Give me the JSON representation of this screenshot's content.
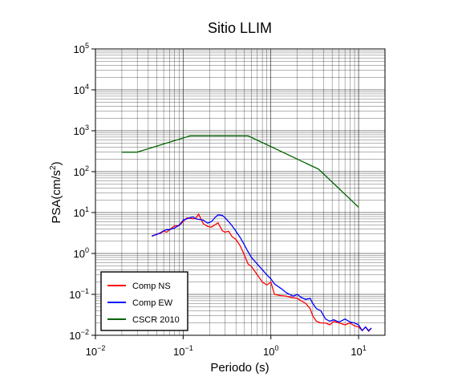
{
  "chart_data": {
    "type": "line",
    "title": "Sitio LLIM",
    "xlabel": "Periodo (s)",
    "ylabel": "PSA(cm/s²)",
    "ylabel_parts": {
      "main": "PSA(cm/s",
      "sup": "2",
      "end": ")"
    },
    "x_scale": "log",
    "y_scale": "log",
    "xlim": [
      0.01,
      20
    ],
    "ylim": [
      0.01,
      100000
    ],
    "grid": true,
    "legend_position": "bottom-left",
    "x_ticks": [
      {
        "value": 0.01,
        "base": "10",
        "exp": "−2"
      },
      {
        "value": 0.1,
        "base": "10",
        "exp": "−1"
      },
      {
        "value": 1,
        "base": "10",
        "exp": "0"
      },
      {
        "value": 10,
        "base": "10",
        "exp": "1"
      }
    ],
    "y_ticks": [
      {
        "value": 0.01,
        "base": "10",
        "exp": "−2"
      },
      {
        "value": 0.1,
        "base": "10",
        "exp": "−1"
      },
      {
        "value": 1,
        "base": "10",
        "exp": "0"
      },
      {
        "value": 10,
        "base": "10",
        "exp": "1"
      },
      {
        "value": 100,
        "base": "10",
        "exp": "2"
      },
      {
        "value": 1000,
        "base": "10",
        "exp": "3"
      },
      {
        "value": 10000,
        "base": "10",
        "exp": "4"
      },
      {
        "value": 100000,
        "base": "10",
        "exp": "5"
      }
    ],
    "series": [
      {
        "name": "Comp NS",
        "color": "#ff0000",
        "points": [
          [
            0.044,
            2.6
          ],
          [
            0.05,
            3.0
          ],
          [
            0.055,
            3.1
          ],
          [
            0.06,
            3.5
          ],
          [
            0.065,
            3.3
          ],
          [
            0.07,
            3.8
          ],
          [
            0.075,
            4.3
          ],
          [
            0.08,
            4.7
          ],
          [
            0.09,
            4.8
          ],
          [
            0.1,
            6.0
          ],
          [
            0.11,
            7.4
          ],
          [
            0.12,
            7.3
          ],
          [
            0.13,
            7.0
          ],
          [
            0.14,
            7.3
          ],
          [
            0.15,
            9.2
          ],
          [
            0.16,
            6.9
          ],
          [
            0.17,
            5.3
          ],
          [
            0.19,
            4.6
          ],
          [
            0.21,
            4.4
          ],
          [
            0.23,
            5.0
          ],
          [
            0.25,
            5.6
          ],
          [
            0.28,
            3.6
          ],
          [
            0.3,
            3.3
          ],
          [
            0.33,
            3.5
          ],
          [
            0.36,
            2.6
          ],
          [
            0.4,
            2.2
          ],
          [
            0.45,
            1.5
          ],
          [
            0.5,
            0.9
          ],
          [
            0.55,
            0.55
          ],
          [
            0.6,
            0.48
          ],
          [
            0.7,
            0.3
          ],
          [
            0.8,
            0.2
          ],
          [
            0.9,
            0.17
          ],
          [
            1.0,
            0.2
          ],
          [
            1.1,
            0.1
          ],
          [
            1.3,
            0.093
          ],
          [
            1.5,
            0.09
          ],
          [
            1.8,
            0.083
          ],
          [
            2.0,
            0.08
          ],
          [
            2.2,
            0.07
          ],
          [
            2.5,
            0.06
          ],
          [
            2.8,
            0.045
          ],
          [
            3.0,
            0.03
          ],
          [
            3.3,
            0.022
          ],
          [
            3.7,
            0.02
          ],
          [
            4.2,
            0.02
          ],
          [
            4.7,
            0.018
          ],
          [
            5.2,
            0.022
          ],
          [
            6.0,
            0.02
          ],
          [
            7.0,
            0.018
          ],
          [
            8.0,
            0.02
          ],
          [
            9.0,
            0.017
          ],
          [
            10.0,
            0.016
          ],
          [
            11.0,
            0.013
          ],
          [
            12.0,
            0.016
          ],
          [
            13.0,
            0.0125
          ],
          [
            14.0,
            0.015
          ]
        ]
      },
      {
        "name": "Comp EW",
        "color": "#0000ff",
        "points": [
          [
            0.044,
            2.7
          ],
          [
            0.05,
            2.9
          ],
          [
            0.055,
            3.2
          ],
          [
            0.06,
            3.6
          ],
          [
            0.065,
            3.8
          ],
          [
            0.07,
            3.8
          ],
          [
            0.075,
            4.0
          ],
          [
            0.08,
            4.2
          ],
          [
            0.09,
            4.9
          ],
          [
            0.1,
            6.5
          ],
          [
            0.11,
            7.0
          ],
          [
            0.12,
            7.5
          ],
          [
            0.13,
            7.8
          ],
          [
            0.14,
            7.0
          ],
          [
            0.15,
            6.8
          ],
          [
            0.17,
            6.5
          ],
          [
            0.19,
            5.5
          ],
          [
            0.21,
            6.0
          ],
          [
            0.23,
            7.5
          ],
          [
            0.25,
            8.8
          ],
          [
            0.28,
            8.5
          ],
          [
            0.3,
            7.5
          ],
          [
            0.33,
            6.0
          ],
          [
            0.36,
            4.8
          ],
          [
            0.4,
            3.5
          ],
          [
            0.45,
            2.4
          ],
          [
            0.5,
            1.6
          ],
          [
            0.55,
            1.1
          ],
          [
            0.6,
            0.8
          ],
          [
            0.7,
            0.55
          ],
          [
            0.8,
            0.4
          ],
          [
            0.9,
            0.3
          ],
          [
            1.0,
            0.24
          ],
          [
            1.1,
            0.18
          ],
          [
            1.3,
            0.14
          ],
          [
            1.5,
            0.11
          ],
          [
            1.8,
            0.09
          ],
          [
            2.0,
            0.1
          ],
          [
            2.2,
            0.085
          ],
          [
            2.5,
            0.075
          ],
          [
            2.8,
            0.08
          ],
          [
            3.0,
            0.06
          ],
          [
            3.3,
            0.045
          ],
          [
            3.7,
            0.04
          ],
          [
            4.2,
            0.025
          ],
          [
            4.7,
            0.022
          ],
          [
            5.2,
            0.024
          ],
          [
            6.0,
            0.021
          ],
          [
            7.0,
            0.025
          ],
          [
            8.0,
            0.021
          ],
          [
            9.0,
            0.02
          ],
          [
            10.0,
            0.018
          ],
          [
            11.0,
            0.013
          ],
          [
            12.0,
            0.016
          ],
          [
            13.0,
            0.013
          ],
          [
            14.0,
            0.015
          ]
        ]
      },
      {
        "name": "CSCR 2010",
        "color": "#006400",
        "points": [
          [
            0.02,
            300
          ],
          [
            0.03,
            300
          ],
          [
            0.12,
            750
          ],
          [
            0.55,
            750
          ],
          [
            3.5,
            115
          ],
          [
            10.0,
            13.5
          ]
        ]
      }
    ]
  }
}
